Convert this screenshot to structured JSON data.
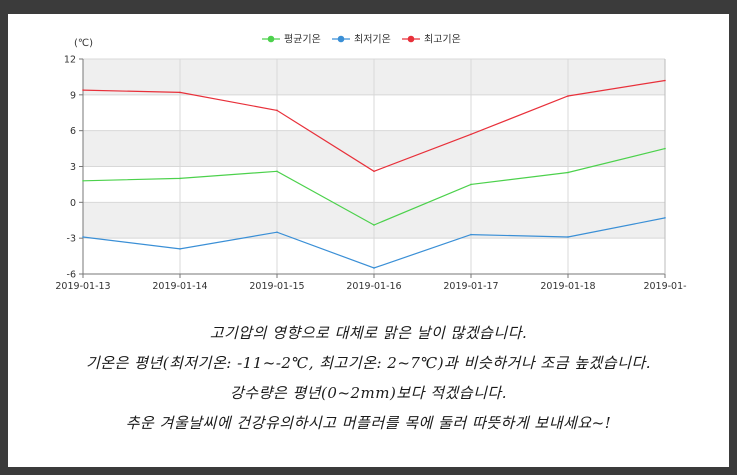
{
  "chart_data": {
    "type": "line",
    "unit_label": "(℃)",
    "x": [
      "2019-01-13",
      "2019-01-14",
      "2019-01-15",
      "2019-01-16",
      "2019-01-17",
      "2019-01-18",
      "2019-01-"
    ],
    "ylim": [
      -6,
      12
    ],
    "yticks": [
      -6,
      -3,
      0,
      3,
      6,
      9,
      12
    ],
    "grid": true,
    "legend_position": "top-center",
    "series": [
      {
        "name": "평균기온",
        "color": "#4cd14c",
        "values": [
          1.8,
          2.0,
          2.6,
          -1.9,
          1.5,
          2.5,
          4.5
        ]
      },
      {
        "name": "최저기온",
        "color": "#3a8fd6",
        "values": [
          -2.9,
          -3.9,
          -2.5,
          -5.5,
          -2.7,
          -2.9,
          -1.3
        ]
      },
      {
        "name": "최고기온",
        "color": "#e8303a",
        "values": [
          9.4,
          9.2,
          7.7,
          2.6,
          5.7,
          8.9,
          10.2
        ]
      }
    ]
  },
  "notes": [
    "고기압의 영향으로 대체로 맑은 날이 많겠습니다.",
    "기온은 평년(최저기온: -11~-2℃, 최고기온: 2~7℃)과 비슷하거나 조금 높겠습니다.",
    "강수량은 평년(0~2mm)보다 적겠습니다.",
    "추운 겨울날씨에 건강유의하시고 머플러를 목에 둘러 따뜻하게 보내세요~!"
  ]
}
